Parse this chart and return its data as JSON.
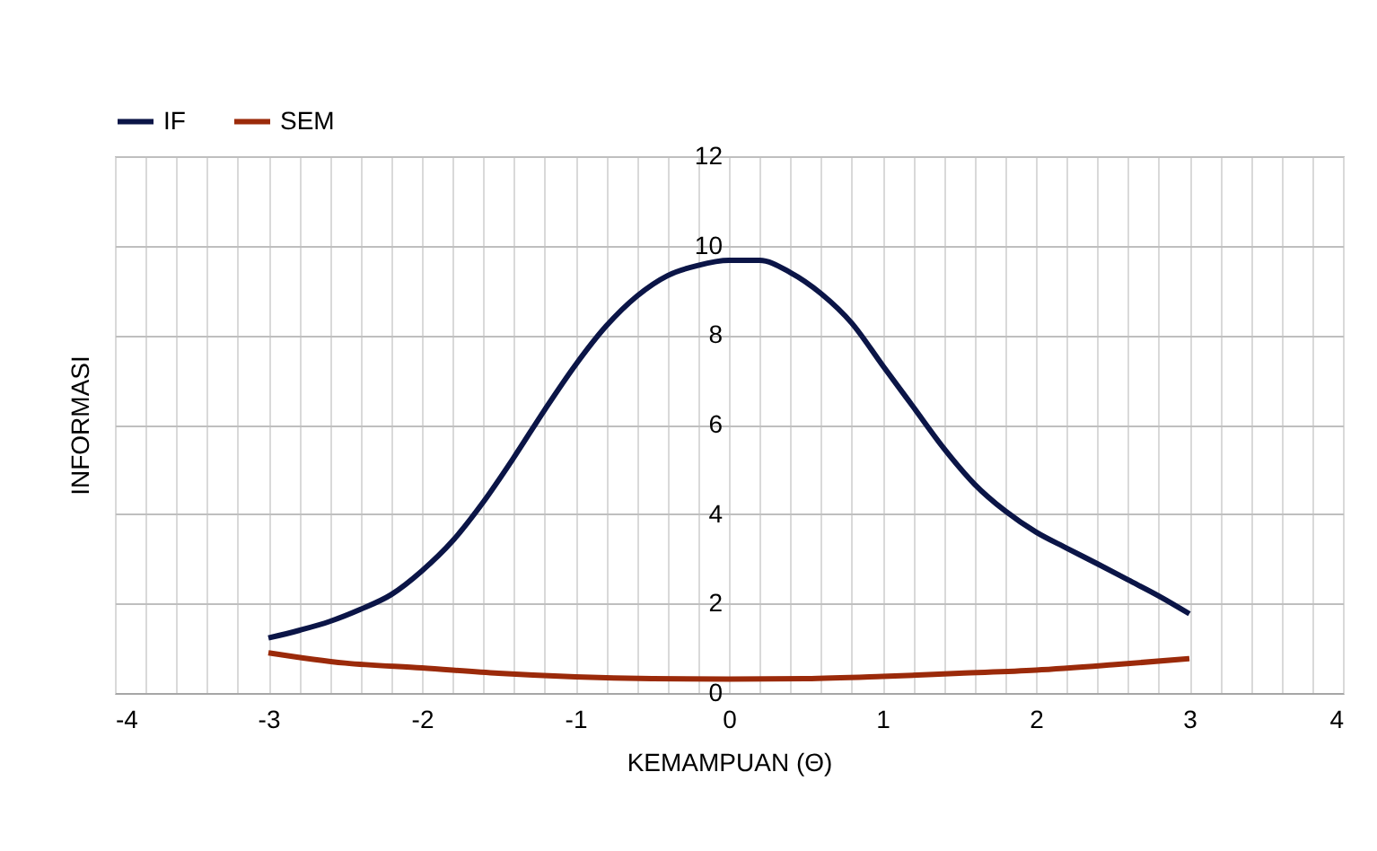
{
  "chart_data": {
    "type": "line",
    "xlabel": "KEMAMPUAN (Θ)",
    "ylabel": "INFORMASI",
    "x": [
      -3,
      -2.8,
      -2.6,
      -2.4,
      -2.2,
      -2,
      -1.8,
      -1.6,
      -1.4,
      -1.2,
      -1,
      -0.8,
      -0.6,
      -0.4,
      -0.2,
      0,
      0.2,
      0.4,
      0.6,
      0.8,
      1,
      1.2,
      1.4,
      1.6,
      1.8,
      2,
      2.2,
      2.4,
      2.6,
      2.8,
      3
    ],
    "series": [
      {
        "name": "IF",
        "color": "#0b1547",
        "values": [
          1.23,
          1.4,
          1.6,
          1.87,
          2.2,
          2.73,
          3.4,
          4.27,
          5.27,
          6.33,
          7.33,
          8.2,
          8.87,
          9.33,
          9.56,
          9.67,
          9.67,
          9.4,
          8.93,
          8.27,
          7.33,
          6.4,
          5.47,
          4.67,
          4.07,
          3.6,
          3.24,
          2.89,
          2.53,
          2.17,
          1.77
        ]
      },
      {
        "name": "SEM",
        "color": "#9b2a0a",
        "x": [
          -3,
          -2.5,
          -2,
          -1.5,
          -1,
          -0.5,
          0,
          0.5,
          1,
          1.5,
          2,
          2.5,
          3
        ],
        "values": [
          0.9,
          0.67,
          0.56,
          0.44,
          0.36,
          0.32,
          0.31,
          0.32,
          0.37,
          0.44,
          0.51,
          0.63,
          0.77
        ]
      }
    ],
    "xlim": [
      -4,
      4
    ],
    "xticks": [
      -4,
      {
        "value": -3.8,
        "label": null
      },
      {
        "value": -3.6,
        "label": null
      },
      {
        "value": -3.4,
        "label": null
      },
      {
        "value": -3.2,
        "label": null
      },
      -3,
      {
        "value": -2.8,
        "label": null
      },
      {
        "value": -2.6,
        "label": null
      },
      {
        "value": -2.4,
        "label": null
      },
      {
        "value": -2.2,
        "label": null
      },
      -2,
      {
        "value": -1.8,
        "label": null
      },
      {
        "value": -1.6,
        "label": null
      },
      {
        "value": -1.4,
        "label": null
      },
      {
        "value": -1.2,
        "label": null
      },
      -1,
      {
        "value": -0.8,
        "label": null
      },
      {
        "value": -0.6,
        "label": null
      },
      {
        "value": -0.4,
        "label": null
      },
      {
        "value": -0.2,
        "label": null
      },
      0,
      {
        "value": 0.2,
        "label": null
      },
      {
        "value": 0.4,
        "label": null
      },
      {
        "value": 0.6,
        "label": null
      },
      {
        "value": 0.8,
        "label": null
      },
      1,
      {
        "value": 1.2,
        "label": null
      },
      {
        "value": 1.4,
        "label": null
      },
      {
        "value": 1.6,
        "label": null
      },
      {
        "value": 1.8,
        "label": null
      },
      2,
      {
        "value": 2.2,
        "label": null
      },
      {
        "value": 2.4,
        "label": null
      },
      {
        "value": 2.6,
        "label": null
      },
      {
        "value": 2.8,
        "label": null
      },
      3,
      {
        "value": 3.2,
        "label": null
      },
      {
        "value": 3.4,
        "label": null
      },
      {
        "value": 3.6,
        "label": null
      },
      {
        "value": 3.8,
        "label": null
      },
      4
    ],
    "ylim": [
      0,
      12
    ],
    "yticks": [
      0,
      2,
      4,
      6,
      8,
      10,
      12
    ],
    "grid": true,
    "legend": "top",
    "marker": "none",
    "line_style": "solid"
  }
}
